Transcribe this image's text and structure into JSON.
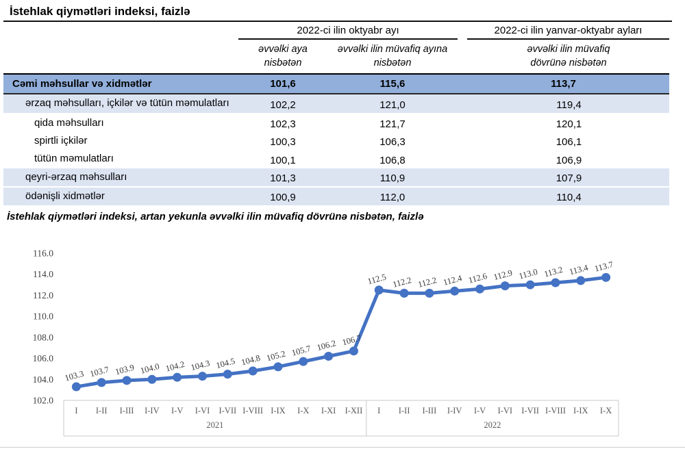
{
  "page": {
    "table_title": "İstehlak qiymətləri indeksi, faizlə",
    "chart_title": "İstehlak qiymətləri indeksi, artan yekunla əvvəlki ilin müvafiq dövrünə nisbətən, faizlə"
  },
  "colors": {
    "line": "#4472C4",
    "total_row_bg": "#92AFDB",
    "band_row_bg": "#DCE4F2",
    "border_dark": "#111111",
    "axis_gray": "#C9C9C9"
  },
  "table": {
    "column_groups": [
      {
        "label": "2022-ci ilin oktyabr ayı",
        "span": 2
      },
      {
        "label": "2022-ci ilin yanvar-oktyabr ayları",
        "span": 1
      }
    ],
    "column_headers": [
      "əvvəlki aya nisbətən",
      "əvvəlki ilin müvafiq ayına nisbətən",
      "əvvəlki ilin müvafiq dövrünə nisbətən"
    ],
    "rows": [
      {
        "label": "Cəmi məhsullar və xidmətlər",
        "values": [
          "101,6",
          "115,6",
          "113,7"
        ],
        "style": "total",
        "indent": 0
      },
      {
        "label": "ərzaq məhsulları, içkilər və tütün məmulatları",
        "values": [
          "102,2",
          "121,0",
          "119,4"
        ],
        "style": "band",
        "indent": 1
      },
      {
        "label": "qida məhsulları",
        "values": [
          "102,3",
          "121,7",
          "120,1"
        ],
        "style": "plain",
        "indent": 2
      },
      {
        "label": "spirtli içkilər",
        "values": [
          "100,3",
          "106,3",
          "106,1"
        ],
        "style": "plain",
        "indent": 2
      },
      {
        "label": "tütün məmulatları",
        "values": [
          "100,1",
          "106,8",
          "106,9"
        ],
        "style": "plain",
        "indent": 2
      },
      {
        "label": "qeyri-ərzaq məhsulları",
        "values": [
          "101,3",
          "110,9",
          "107,9"
        ],
        "style": "band",
        "indent": 1
      },
      {
        "label": "ödənişli xidmətlər",
        "values": [
          "100,9",
          "112,0",
          "110,4"
        ],
        "style": "band",
        "indent": 1
      }
    ]
  },
  "chart_data": {
    "type": "line",
    "title": "İstehlak qiymətləri indeksi, artan yekunla əvvəlki ilin müvafiq dövrünə nisbətən, faizlə",
    "categories": [
      "I",
      "I-II",
      "I-III",
      "I-IV",
      "I-V",
      "I-VI",
      "I-VII",
      "I-VIII",
      "I-IX",
      "I-X",
      "I-XI",
      "I-XII",
      "I",
      "I-II",
      "I-III",
      "I-IV",
      "I-V",
      "I-VI",
      "I-VII",
      "I-VIII",
      "I-IX",
      "I-X"
    ],
    "groups": [
      {
        "label": "2021",
        "count": 12
      },
      {
        "label": "2022",
        "count": 10
      }
    ],
    "series": [
      {
        "name": "İstehlak qiymətləri indeksi",
        "values": [
          103.3,
          103.7,
          103.9,
          104.0,
          104.2,
          104.3,
          104.5,
          104.8,
          105.2,
          105.7,
          106.2,
          106.7,
          112.5,
          112.2,
          112.2,
          112.4,
          112.6,
          112.9,
          113.0,
          113.2,
          113.4,
          113.7
        ]
      }
    ],
    "ylim": [
      102.0,
      116.0
    ],
    "ytick_step": 2.0,
    "ytick_labels": [
      "102.0",
      "104.0",
      "106.0",
      "108.0",
      "110.0",
      "112.0",
      "114.0",
      "116.0"
    ],
    "grid": false,
    "legend": false,
    "line_color": "#4472C4",
    "label_decimals": 1,
    "data_labels": "above, rotated"
  }
}
